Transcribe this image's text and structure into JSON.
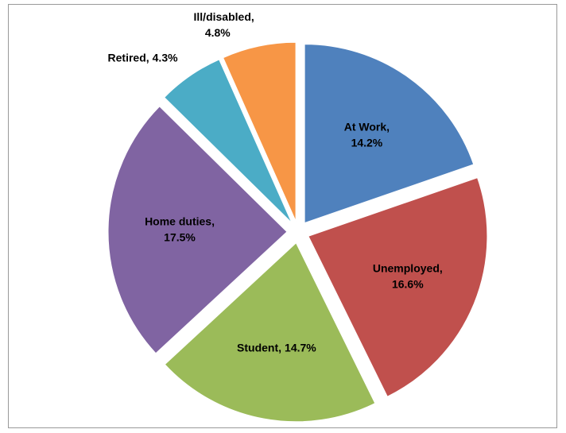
{
  "chart_data": {
    "type": "pie",
    "categories": [
      "At Work,",
      "Unemployed,",
      "Student,",
      "Home duties,",
      "Retired,",
      "Ill/disabled,"
    ],
    "values": [
      14.2,
      16.6,
      14.7,
      17.5,
      4.3,
      4.8
    ],
    "value_labels": [
      "14.2%",
      "16.6%",
      "14.7%",
      "17.5%",
      "4.3%",
      "4.8%"
    ],
    "colors": [
      "#4f81bd",
      "#c0504d",
      "#9bbb59",
      "#8064a2",
      "#4bacc6",
      "#f79646"
    ]
  }
}
